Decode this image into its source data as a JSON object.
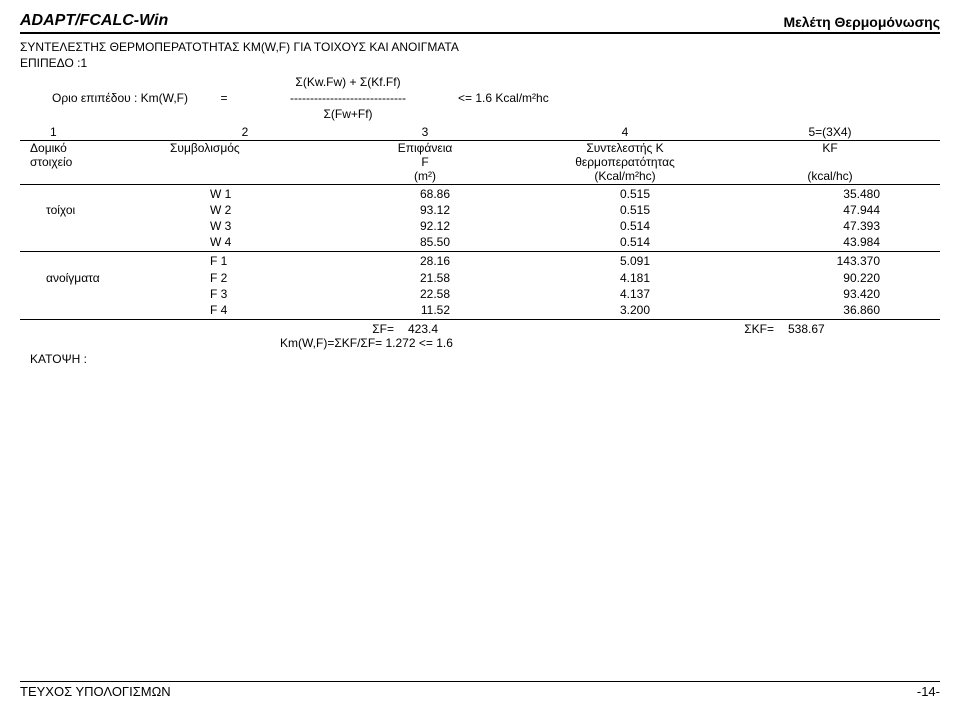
{
  "header": {
    "app_title": "ADAPT/FCALC-Win",
    "study_title": "Μελέτη Θερμομόνωσης"
  },
  "section": {
    "title": "ΣΥΝΤΕΛΕΣΤΗΣ ΘΕΡΜΟΠΕΡΑΤΟΤΗΤΑΣ KM(W,F) ΓΙΑ ΤΟΙΧΟΥΣ ΚΑΙ ΑΝΟΙΓΜΑΤΑ",
    "level": "ΕΠΙΠΕΔΟ :1"
  },
  "formula": {
    "line1_mid": "Σ(Kw.Fw) + Σ(Kf.Ff)",
    "line2_left": "Οριο επιπέδου : Km(W,F)",
    "line2_eq": "=",
    "line2_mid": "-----------------------------",
    "line2_right": "<= 1.6 Kcal/m²hc",
    "line3_mid": "Σ(Fw+Ff)"
  },
  "col_nums": {
    "c1": "1",
    "c2": "2",
    "c3": "3",
    "c4": "4",
    "c5": "5=(3X4)"
  },
  "col_labels": {
    "l1a": "Δομικό",
    "l1b": "στοιχείο",
    "l2": "Συμβολισμός",
    "l3a": "Επιφάνεια",
    "l3b": "F",
    "l3c": "(m²)",
    "l4a": "Συντελεστής K",
    "l4b": "θερμοπερατότητας",
    "l4c": "(Kcal/m²hc)",
    "l5a": "KF",
    "l5c": "(kcal/hc)"
  },
  "groups": [
    {
      "category": "τοίχοι",
      "rows": [
        {
          "sym": "W 1",
          "area": "68.86",
          "k": "0.515",
          "kf": "35.480"
        },
        {
          "sym": "W 2",
          "area": "93.12",
          "k": "0.515",
          "kf": "47.944"
        },
        {
          "sym": "W 3",
          "area": "92.12",
          "k": "0.514",
          "kf": "47.393"
        },
        {
          "sym": "W 4",
          "area": "85.50",
          "k": "0.514",
          "kf": "43.984"
        }
      ]
    },
    {
      "category": "ανοίγματα",
      "rows": [
        {
          "sym": "F 1",
          "area": "28.16",
          "k": "5.091",
          "kf": "143.370"
        },
        {
          "sym": "F 2",
          "area": "21.58",
          "k": "4.181",
          "kf": "90.220"
        },
        {
          "sym": "F 3",
          "area": "22.58",
          "k": "4.137",
          "kf": "93.420"
        },
        {
          "sym": "F 4",
          "area": "11.52",
          "k": "3.200",
          "kf": "36.860"
        }
      ]
    }
  ],
  "totals": {
    "sf_label": "ΣF=",
    "sf_val": "423.4",
    "skf_label": "ΣKF=",
    "skf_val": "538.67",
    "km_line": "Km(W,F)=ΣKF/ΣF= 1.272 <= 1.6"
  },
  "katopsi": "ΚΑΤΟΨΗ :",
  "footer": {
    "left": "ΤΕΥΧΟΣ ΥΠΟΛΟΓΙΣΜΩΝ",
    "right": "-14-"
  }
}
